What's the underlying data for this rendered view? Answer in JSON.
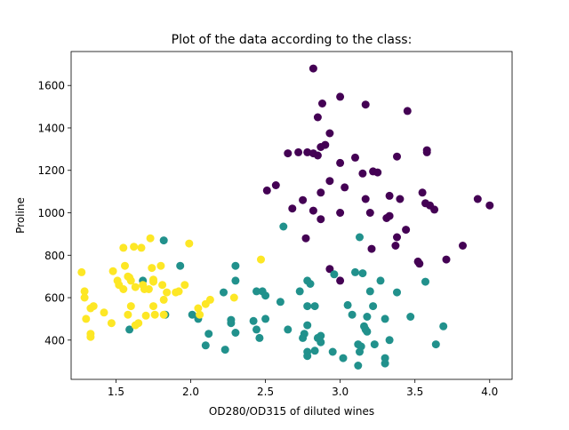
{
  "chart_data": {
    "type": "scatter",
    "title": "Plot of the data according to the class:",
    "xlabel": "OD280/OD315 of diluted wines",
    "ylabel": "Proline",
    "xlim": [
      1.2,
      4.15
    ],
    "ylim": [
      215,
      1760
    ],
    "grid": false,
    "legend": "none",
    "x_ticks": [
      1.5,
      2.0,
      2.5,
      3.0,
      3.5,
      4.0
    ],
    "x_tick_labels": [
      "1.5",
      "2.0",
      "2.5",
      "3.0",
      "3.5",
      "4.0"
    ],
    "y_ticks": [
      400,
      600,
      800,
      1000,
      1200,
      1400,
      1600
    ],
    "y_tick_labels": [
      "400",
      "600",
      "800",
      "1000",
      "1200",
      "1400",
      "1600"
    ],
    "series": [
      {
        "color": "#440154",
        "points": [
          [
            2.82,
            1680
          ],
          [
            3.0,
            1547
          ],
          [
            3.17,
            1510
          ],
          [
            2.88,
            1515
          ],
          [
            3.45,
            1480
          ],
          [
            2.85,
            1450
          ],
          [
            2.93,
            1375
          ],
          [
            2.9,
            1320
          ],
          [
            2.87,
            1310
          ],
          [
            3.58,
            1295
          ],
          [
            3.58,
            1285
          ],
          [
            2.65,
            1280
          ],
          [
            2.72,
            1285
          ],
          [
            2.78,
            1285
          ],
          [
            2.82,
            1280
          ],
          [
            2.85,
            1270
          ],
          [
            3.38,
            1265
          ],
          [
            3.1,
            1260
          ],
          [
            2.93,
            1150
          ],
          [
            3.0,
            1235
          ],
          [
            3.15,
            1185
          ],
          [
            3.22,
            1195
          ],
          [
            3.25,
            1190
          ],
          [
            2.57,
            1130
          ],
          [
            2.51,
            1105
          ],
          [
            2.87,
            1095
          ],
          [
            3.03,
            1120
          ],
          [
            3.17,
            1065
          ],
          [
            2.75,
            1060
          ],
          [
            3.33,
            1080
          ],
          [
            3.4,
            1065
          ],
          [
            3.55,
            1095
          ],
          [
            3.6,
            1035
          ],
          [
            3.92,
            1065
          ],
          [
            4.0,
            1035
          ],
          [
            3.57,
            1045
          ],
          [
            3.63,
            1015
          ],
          [
            2.68,
            1020
          ],
          [
            2.82,
            1010
          ],
          [
            2.87,
            970
          ],
          [
            3.0,
            1000
          ],
          [
            3.2,
            1000
          ],
          [
            3.31,
            975
          ],
          [
            3.33,
            985
          ],
          [
            3.44,
            920
          ],
          [
            3.38,
            885
          ],
          [
            2.77,
            880
          ],
          [
            3.37,
            845
          ],
          [
            3.82,
            845
          ],
          [
            3.21,
            830
          ],
          [
            3.52,
            770
          ],
          [
            3.71,
            780
          ],
          [
            3.53,
            760
          ],
          [
            2.93,
            735
          ],
          [
            3.0,
            680
          ]
        ]
      },
      {
        "color": "#21918c",
        "points": [
          [
            1.82,
            870
          ],
          [
            2.62,
            935
          ],
          [
            3.13,
            885
          ],
          [
            1.68,
            680
          ],
          [
            1.93,
            750
          ],
          [
            2.3,
            750
          ],
          [
            2.3,
            680
          ],
          [
            2.48,
            630
          ],
          [
            2.44,
            630
          ],
          [
            2.5,
            610
          ],
          [
            2.22,
            625
          ],
          [
            2.73,
            630
          ],
          [
            2.78,
            680
          ],
          [
            2.8,
            665
          ],
          [
            2.78,
            560
          ],
          [
            2.83,
            560
          ],
          [
            2.96,
            710
          ],
          [
            3.1,
            720
          ],
          [
            3.15,
            715
          ],
          [
            3.27,
            680
          ],
          [
            3.2,
            630
          ],
          [
            3.05,
            565
          ],
          [
            3.08,
            520
          ],
          [
            3.18,
            510
          ],
          [
            3.22,
            560
          ],
          [
            3.38,
            625
          ],
          [
            3.3,
            500
          ],
          [
            3.47,
            510
          ],
          [
            3.57,
            675
          ],
          [
            3.69,
            465
          ],
          [
            3.64,
            380
          ],
          [
            3.33,
            400
          ],
          [
            3.3,
            315
          ],
          [
            3.3,
            290
          ],
          [
            3.23,
            380
          ],
          [
            3.18,
            440
          ],
          [
            3.16,
            465
          ],
          [
            3.17,
            450
          ],
          [
            3.12,
            380
          ],
          [
            3.14,
            370
          ],
          [
            3.13,
            345
          ],
          [
            3.12,
            280
          ],
          [
            3.02,
            315
          ],
          [
            2.95,
            345
          ],
          [
            2.87,
            390
          ],
          [
            2.87,
            420
          ],
          [
            2.85,
            410
          ],
          [
            2.83,
            350
          ],
          [
            2.78,
            345
          ],
          [
            2.78,
            325
          ],
          [
            2.78,
            470
          ],
          [
            2.76,
            430
          ],
          [
            2.75,
            410
          ],
          [
            2.65,
            450
          ],
          [
            2.6,
            580
          ],
          [
            2.5,
            500
          ],
          [
            2.46,
            410
          ],
          [
            2.42,
            490
          ],
          [
            2.44,
            450
          ],
          [
            2.3,
            435
          ],
          [
            2.23,
            355
          ],
          [
            2.27,
            480
          ],
          [
            2.27,
            495
          ],
          [
            2.12,
            430
          ],
          [
            2.1,
            375
          ],
          [
            2.05,
            500
          ],
          [
            2.01,
            520
          ],
          [
            1.83,
            520
          ],
          [
            1.59,
            450
          ]
        ]
      },
      {
        "color": "#fde725",
        "points": [
          [
            1.27,
            720
          ],
          [
            1.29,
            630
          ],
          [
            1.29,
            600
          ],
          [
            1.3,
            500
          ],
          [
            1.33,
            550
          ],
          [
            1.35,
            560
          ],
          [
            1.33,
            430
          ],
          [
            1.33,
            415
          ],
          [
            1.42,
            530
          ],
          [
            1.47,
            480
          ],
          [
            1.48,
            725
          ],
          [
            1.51,
            680
          ],
          [
            1.52,
            660
          ],
          [
            1.55,
            835
          ],
          [
            1.56,
            750
          ],
          [
            1.55,
            640
          ],
          [
            1.58,
            700
          ],
          [
            1.59,
            695
          ],
          [
            1.6,
            680
          ],
          [
            1.58,
            520
          ],
          [
            1.6,
            560
          ],
          [
            1.62,
            840
          ],
          [
            1.63,
            650
          ],
          [
            1.63,
            470
          ],
          [
            1.65,
            480
          ],
          [
            1.67,
            835
          ],
          [
            1.68,
            660
          ],
          [
            1.69,
            640
          ],
          [
            1.7,
            515
          ],
          [
            1.72,
            640
          ],
          [
            1.73,
            880
          ],
          [
            1.74,
            740
          ],
          [
            1.75,
            675
          ],
          [
            1.76,
            520
          ],
          [
            1.75,
            560
          ],
          [
            1.75,
            685
          ],
          [
            1.8,
            750
          ],
          [
            1.81,
            660
          ],
          [
            1.82,
            590
          ],
          [
            1.82,
            520
          ],
          [
            1.84,
            625
          ],
          [
            1.9,
            625
          ],
          [
            1.92,
            630
          ],
          [
            1.96,
            660
          ],
          [
            1.99,
            855
          ],
          [
            2.05,
            550
          ],
          [
            2.06,
            520
          ],
          [
            2.1,
            570
          ],
          [
            2.13,
            590
          ],
          [
            2.29,
            600
          ],
          [
            2.47,
            780
          ]
        ]
      }
    ]
  }
}
